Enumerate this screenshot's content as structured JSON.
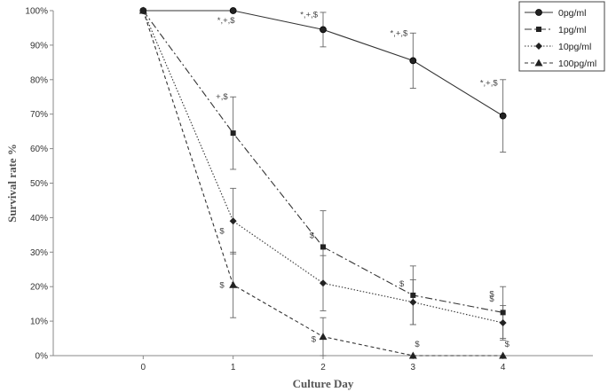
{
  "chart_data": {
    "type": "line",
    "title": "",
    "xlabel": "Culture  Day",
    "ylabel": "Survival rate %",
    "x": [
      0,
      1,
      2,
      3,
      4
    ],
    "x_tick_labels": [
      "0",
      "1",
      "2",
      "3",
      "4"
    ],
    "ylim": [
      0,
      100
    ],
    "y_ticks": [
      0,
      10,
      20,
      30,
      40,
      50,
      60,
      70,
      80,
      90,
      100
    ],
    "y_tick_labels": [
      "0%",
      "10%",
      "20%",
      "30%",
      "40%",
      "50%",
      "60%",
      "70%",
      "80%",
      "90%",
      "100%"
    ],
    "grid": false,
    "legend_position": "top-right",
    "series": [
      {
        "name": "0pg/ml",
        "marker": "circle",
        "line_style": "solid",
        "values": [
          100,
          100,
          94.5,
          85.5,
          69.5
        ],
        "error": [
          0,
          0,
          5,
          8,
          10.5
        ],
        "annotations": [
          "",
          "*,+,$",
          "*,+,$",
          "*,+,$",
          "*,+,$"
        ]
      },
      {
        "name": "1pg/ml",
        "marker": "square",
        "line_style": "dashdot",
        "values": [
          100,
          64.5,
          31.5,
          17.5,
          12.5
        ],
        "error": [
          0,
          10.5,
          10.5,
          8.5,
          7.5
        ],
        "annotations": [
          "",
          "+,$",
          "$",
          "$",
          "$"
        ]
      },
      {
        "name": "10pg/ml",
        "marker": "diamond",
        "line_style": "dotted",
        "values": [
          100,
          39,
          21,
          15.5,
          9.5
        ],
        "error": [
          0,
          9.5,
          8,
          6.5,
          5
        ],
        "annotations": [
          "",
          "$",
          "",
          "",
          "$"
        ]
      },
      {
        "name": "100pg/ml",
        "marker": "triangle",
        "line_style": "dashed",
        "values": [
          100,
          20.5,
          5.5,
          0,
          0
        ],
        "error": [
          0,
          9.5,
          5.5,
          0,
          0
        ],
        "annotations": [
          "",
          "$",
          "$",
          "$",
          "$"
        ]
      }
    ]
  }
}
